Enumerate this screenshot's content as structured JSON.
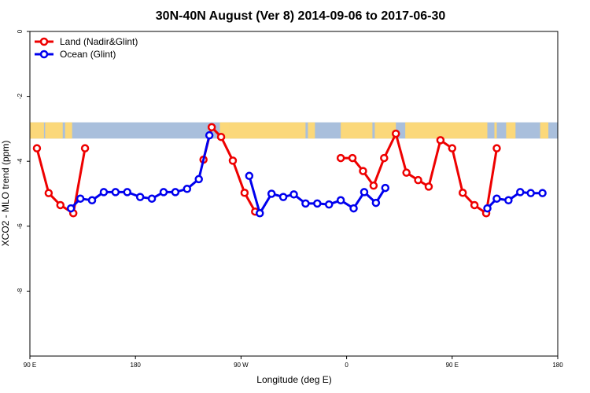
{
  "chart_data": {
    "type": "line",
    "title": "30N-40N August (Ver 8)   2014-09-06 to 2017-06-30",
    "xlabel": "Longitude (deg E)",
    "ylabel": "XCO2 - MLO trend (ppm)",
    "xlim": [
      90,
      540
    ],
    "ylim": [
      -10,
      0
    ],
    "xticks": [
      {
        "value": 90,
        "label": "90 E"
      },
      {
        "value": 180,
        "label": "180"
      },
      {
        "value": 270,
        "label": "90 W"
      },
      {
        "value": 360,
        "label": "0"
      },
      {
        "value": 450,
        "label": "90 E"
      },
      {
        "value": 540,
        "label": "180"
      }
    ],
    "yticks": [
      {
        "value": 0,
        "label": "0"
      },
      {
        "value": -2,
        "label": "-2"
      },
      {
        "value": -4,
        "label": "-4"
      },
      {
        "value": -6,
        "label": "-6"
      },
      {
        "value": -8,
        "label": "-8"
      }
    ],
    "grid": false,
    "legend_position": "top-left",
    "map_strip": {
      "y_top": -2.8,
      "y_bottom": -3.3,
      "ocean_color": "#a9bfdc",
      "land_color": "#fbd87a"
    },
    "series": [
      {
        "name": "Land (Nadir&Glint)",
        "color": "#ee0000",
        "segments": [
          [
            [
              96,
              -3.6
            ],
            [
              106,
              -4.98
            ],
            [
              116,
              -5.35
            ],
            [
              127,
              -5.6
            ],
            [
              137,
              -3.6
            ]
          ],
          [
            [
              238,
              -3.95
            ],
            [
              245,
              -2.95
            ],
            [
              253,
              -3.25
            ],
            [
              263,
              -3.98
            ],
            [
              273,
              -4.97
            ],
            [
              282,
              -5.55
            ]
          ],
          [
            [
              355,
              -3.9
            ],
            [
              365,
              -3.9
            ],
            [
              374,
              -4.3
            ],
            [
              383,
              -4.75
            ],
            [
              392,
              -3.9
            ],
            [
              402,
              -3.15
            ],
            [
              411,
              -4.35
            ],
            [
              421,
              -4.58
            ],
            [
              430,
              -4.78
            ],
            [
              440,
              -3.35
            ],
            [
              450,
              -3.6
            ],
            [
              459,
              -4.97
            ],
            [
              469,
              -5.35
            ],
            [
              479,
              -5.6
            ],
            [
              488,
              -3.6
            ]
          ]
        ]
      },
      {
        "name": "Ocean (Glint)",
        "color": "#0000ee",
        "segments": [
          [
            [
              125,
              -5.45
            ],
            [
              133,
              -5.15
            ],
            [
              143,
              -5.2
            ],
            [
              153,
              -4.95
            ],
            [
              163,
              -4.95
            ],
            [
              173,
              -4.95
            ],
            [
              184,
              -5.1
            ],
            [
              194,
              -5.15
            ],
            [
              204,
              -4.95
            ],
            [
              214,
              -4.95
            ],
            [
              224,
              -4.85
            ],
            [
              234,
              -4.55
            ],
            [
              243,
              -3.2
            ]
          ],
          [
            [
              277,
              -4.45
            ],
            [
              286,
              -5.6
            ],
            [
              296,
              -5.0
            ],
            [
              306,
              -5.1
            ],
            [
              315,
              -5.02
            ],
            [
              325,
              -5.3
            ],
            [
              335,
              -5.3
            ],
            [
              345,
              -5.33
            ],
            [
              355,
              -5.2
            ],
            [
              366,
              -5.45
            ],
            [
              375,
              -4.95
            ],
            [
              385,
              -5.28
            ],
            [
              393,
              -4.82
            ]
          ],
          [
            [
              480,
              -5.45
            ],
            [
              488,
              -5.15
            ],
            [
              498,
              -5.2
            ],
            [
              508,
              -4.95
            ],
            [
              517,
              -4.98
            ],
            [
              527,
              -4.98
            ]
          ]
        ]
      }
    ]
  }
}
